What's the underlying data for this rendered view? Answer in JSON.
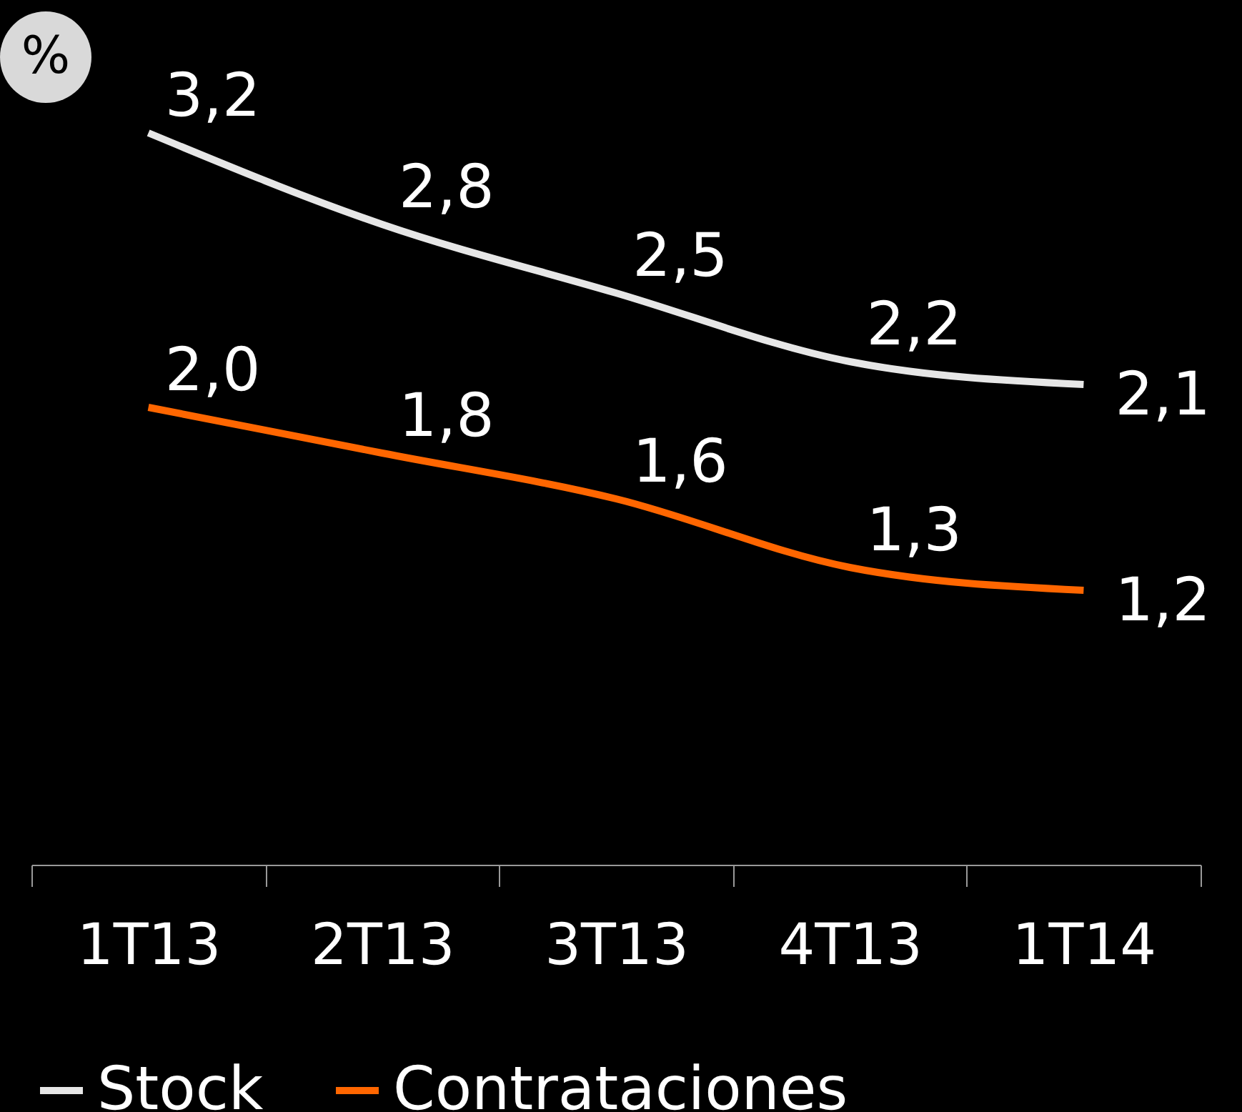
{
  "chart_data": {
    "type": "line",
    "categories": [
      "1T13",
      "2T13",
      "3T13",
      "4T13",
      "1T14"
    ],
    "series": [
      {
        "name": "Stock",
        "color": "#e6e6e6",
        "values": [
          3.2,
          2.8,
          2.5,
          2.2,
          2.1
        ],
        "value_labels": [
          "3,2",
          "2,8",
          "2,5",
          "2,2",
          "2,1"
        ]
      },
      {
        "name": "Contrataciones",
        "color": "#ff6600",
        "values": [
          2.0,
          1.8,
          1.6,
          1.3,
          1.2
        ],
        "value_labels": [
          "2,0",
          "1,8",
          "1,6",
          "1,3",
          "1,2"
        ]
      }
    ],
    "annotations": [
      "%"
    ],
    "legend": "bottom",
    "grid": false,
    "marker": "none",
    "line_style": "solid"
  }
}
